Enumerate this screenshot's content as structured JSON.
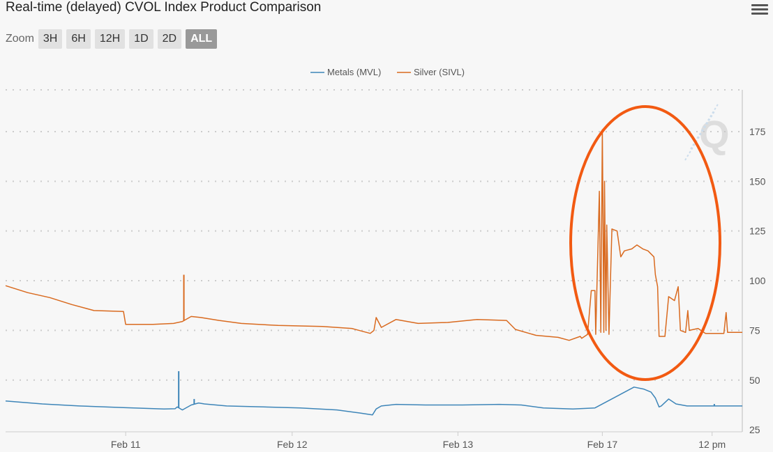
{
  "title": "Real-time (delayed) CVOL Index Product Comparison",
  "menu": {
    "icon": "hamburger-menu-icon"
  },
  "zoom": {
    "label": "Zoom",
    "buttons": [
      {
        "label": "3H",
        "active": false
      },
      {
        "label": "6H",
        "active": false
      },
      {
        "label": "12H",
        "active": false
      },
      {
        "label": "1D",
        "active": false
      },
      {
        "label": "2D",
        "active": false
      },
      {
        "label": "ALL",
        "active": true
      }
    ]
  },
  "watermark": {
    "letter": "Q"
  },
  "annotation": {
    "shape": "ellipse",
    "color": "#f25a12"
  },
  "chart_data": {
    "type": "line",
    "title": "",
    "xlabel": "",
    "ylabel": "",
    "ylim": [
      24,
      196
    ],
    "yticks": [
      25,
      50,
      75,
      100,
      125,
      150,
      175
    ],
    "xlim": [
      0,
      1
    ],
    "xticks": [
      {
        "label": "Feb 11",
        "x": 0.163
      },
      {
        "label": "Feb 12",
        "x": 0.389
      },
      {
        "label": "Feb 13",
        "x": 0.614
      },
      {
        "label": "Feb 17",
        "x": 0.81
      },
      {
        "label": "12 pm",
        "x": 0.959
      }
    ],
    "grid": true,
    "legend": "top-center",
    "series": [
      {
        "name": "Metals (MVL)",
        "color": "#3d85b8",
        "points": [
          [
            0.0,
            39.5
          ],
          [
            0.05,
            38.0
          ],
          [
            0.1,
            37.0
          ],
          [
            0.16,
            36.2
          ],
          [
            0.215,
            35.5
          ],
          [
            0.23,
            35.6
          ],
          [
            0.233,
            36.5
          ],
          [
            0.24,
            35.0
          ],
          [
            0.252,
            37.5
          ],
          [
            0.262,
            38.5
          ],
          [
            0.27,
            38.0
          ],
          [
            0.3,
            37.0
          ],
          [
            0.35,
            36.5
          ],
          [
            0.4,
            36.0
          ],
          [
            0.45,
            35.0
          ],
          [
            0.48,
            33.5
          ],
          [
            0.498,
            32.5
          ],
          [
            0.503,
            35.5
          ],
          [
            0.51,
            37.0
          ],
          [
            0.53,
            37.8
          ],
          [
            0.57,
            37.5
          ],
          [
            0.62,
            37.5
          ],
          [
            0.67,
            37.8
          ],
          [
            0.7,
            37.5
          ],
          [
            0.73,
            36.0
          ],
          [
            0.77,
            35.5
          ],
          [
            0.8,
            36.0
          ],
          [
            0.853,
            46.5
          ],
          [
            0.866,
            45.5
          ],
          [
            0.876,
            44.0
          ],
          [
            0.882,
            41.0
          ],
          [
            0.887,
            36.5
          ],
          [
            0.89,
            37.0
          ],
          [
            0.9,
            40.5
          ],
          [
            0.91,
            38.0
          ],
          [
            0.925,
            37.0
          ],
          [
            0.96,
            37.0
          ],
          [
            1.0,
            37.0
          ]
        ],
        "spikes": [
          [
            0.235,
            54.5
          ],
          [
            0.256,
            40.5
          ],
          [
            0.962,
            38.0
          ]
        ]
      },
      {
        "name": "Silver (SIVL)",
        "color": "#d96a1f",
        "points": [
          [
            0.0,
            97.5
          ],
          [
            0.03,
            94.0
          ],
          [
            0.06,
            91.5
          ],
          [
            0.09,
            88.0
          ],
          [
            0.12,
            85.0
          ],
          [
            0.16,
            84.5
          ],
          [
            0.163,
            78.0
          ],
          [
            0.2,
            78.0
          ],
          [
            0.228,
            78.5
          ],
          [
            0.24,
            79.5
          ],
          [
            0.252,
            82.0
          ],
          [
            0.265,
            81.5
          ],
          [
            0.29,
            80.0
          ],
          [
            0.32,
            78.5
          ],
          [
            0.37,
            77.5
          ],
          [
            0.43,
            77.0
          ],
          [
            0.47,
            76.0
          ],
          [
            0.495,
            73.5
          ],
          [
            0.5,
            75.0
          ],
          [
            0.503,
            81.5
          ],
          [
            0.51,
            76.5
          ],
          [
            0.53,
            80.5
          ],
          [
            0.56,
            78.5
          ],
          [
            0.6,
            79.0
          ],
          [
            0.64,
            80.5
          ],
          [
            0.68,
            80.0
          ],
          [
            0.692,
            75.5
          ],
          [
            0.72,
            72.5
          ],
          [
            0.75,
            71.5
          ],
          [
            0.765,
            70.0
          ],
          [
            0.78,
            72.0
          ],
          [
            0.782,
            71.0
          ],
          [
            0.79,
            73.0
          ],
          [
            0.795,
            95.0
          ],
          [
            0.8,
            95.0
          ],
          [
            0.801,
            73.0
          ],
          [
            0.806,
            145.0
          ],
          [
            0.808,
            74.0
          ],
          [
            0.81,
            176.0
          ],
          [
            0.812,
            74.0
          ],
          [
            0.813,
            150.0
          ],
          [
            0.815,
            75.0
          ],
          [
            0.816,
            128.0
          ],
          [
            0.819,
            73.0
          ],
          [
            0.821,
            100.0
          ],
          [
            0.823,
            126.0
          ],
          [
            0.83,
            125.0
          ],
          [
            0.835,
            112.0
          ],
          [
            0.84,
            115.0
          ],
          [
            0.85,
            116.0
          ],
          [
            0.857,
            118.0
          ],
          [
            0.865,
            116.0
          ],
          [
            0.872,
            115.0
          ],
          [
            0.88,
            112.0
          ],
          [
            0.882,
            103.0
          ],
          [
            0.885,
            97.0
          ],
          [
            0.887,
            72.0
          ],
          [
            0.895,
            72.0
          ],
          [
            0.9,
            92.0
          ],
          [
            0.908,
            90.0
          ],
          [
            0.913,
            97.0
          ],
          [
            0.916,
            75.0
          ],
          [
            0.923,
            74.0
          ],
          [
            0.926,
            85.0
          ],
          [
            0.928,
            75.0
          ],
          [
            0.94,
            76.0
          ],
          [
            0.95,
            73.5
          ],
          [
            0.975,
            73.5
          ],
          [
            0.978,
            84.0
          ],
          [
            0.98,
            74.0
          ],
          [
            1.0,
            74.0
          ]
        ]
      }
    ]
  }
}
